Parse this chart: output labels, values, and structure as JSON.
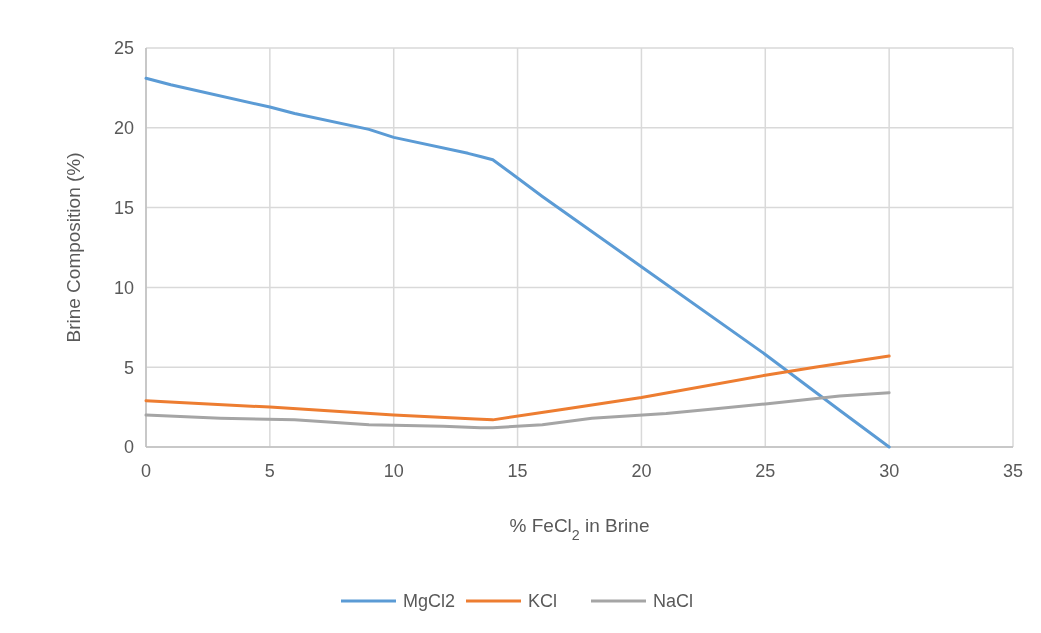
{
  "chart_data": {
    "type": "line",
    "xlabel": "% FeCl$_{2}$ in Brine",
    "ylabel": "Brine Composition (%)",
    "xlim": [
      0,
      35
    ],
    "xticks": [
      0,
      5,
      10,
      15,
      20,
      25,
      30,
      35
    ],
    "ylim": [
      0,
      25
    ],
    "yticks": [
      0,
      5,
      10,
      15,
      20,
      25
    ],
    "grid": true,
    "legend": "bottom",
    "marker": "none",
    "line_style": "solid",
    "series": [
      {
        "name": "MgCl2",
        "color": "#5b9bd5",
        "x": [
          0,
          1,
          5,
          6,
          9,
          10,
          13,
          13.5,
          14,
          16,
          20,
          25,
          28,
          30
        ],
        "values": [
          23.1,
          22.7,
          21.3,
          20.9,
          19.9,
          19.4,
          18.4,
          18.2,
          18.0,
          15.7,
          11.3,
          5.8,
          2.3,
          0
        ]
      },
      {
        "name": "KCl",
        "color": "#ed7d31",
        "x": [
          0,
          5,
          10,
          13.3,
          14,
          17,
          20,
          25,
          27,
          30
        ],
        "values": [
          2.9,
          2.5,
          2.0,
          1.75,
          1.7,
          2.4,
          3.1,
          4.5,
          5.0,
          5.7
        ]
      },
      {
        "name": "NaCl",
        "color": "#a5a5a5",
        "x": [
          0,
          3,
          6,
          9,
          12,
          13.5,
          14,
          16,
          18,
          21,
          23,
          25,
          28,
          30
        ],
        "values": [
          2.0,
          1.8,
          1.7,
          1.4,
          1.3,
          1.2,
          1.2,
          1.4,
          1.8,
          2.1,
          2.4,
          2.7,
          3.2,
          3.4
        ]
      }
    ]
  }
}
